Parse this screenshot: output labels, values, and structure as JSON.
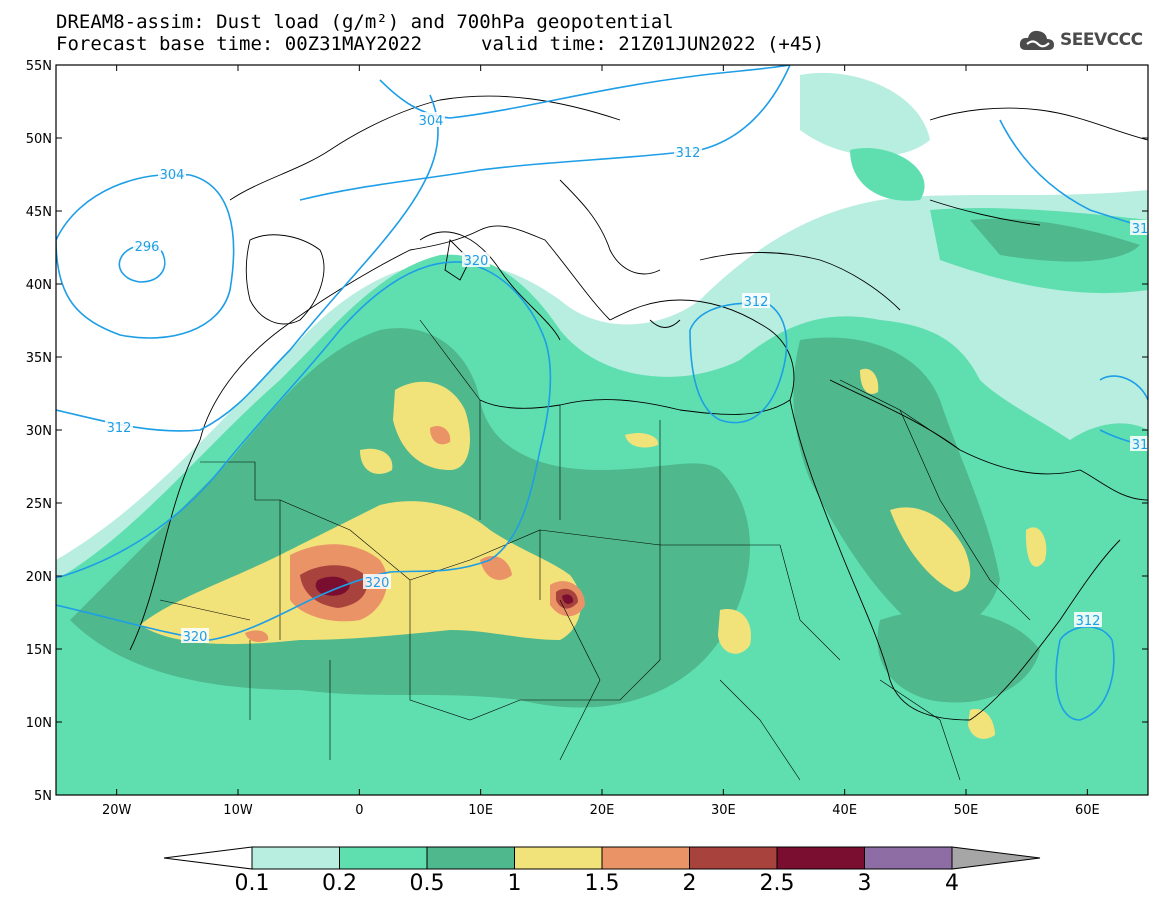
{
  "title": {
    "line1": "DREAM8-assim: Dust load (g/m²) and 700hPa geopotential",
    "line2_left": "Forecast base time: 00Z31MAY2022",
    "line2_right": "valid time: 21Z01JUN2022 (+45)"
  },
  "logo": {
    "text": "SEEVCCC",
    "icon": "cloud-icon"
  },
  "map": {
    "extent": {
      "lon": [
        -25,
        65
      ],
      "lat": [
        5,
        55
      ]
    },
    "lat_ticks": [
      "5N",
      "10N",
      "15N",
      "20N",
      "25N",
      "30N",
      "35N",
      "40N",
      "45N",
      "50N",
      "55N"
    ],
    "lat_values": [
      5,
      10,
      15,
      20,
      25,
      30,
      35,
      40,
      45,
      50,
      55
    ],
    "lon_ticks": [
      "20W",
      "10W",
      "0",
      "10E",
      "20E",
      "30E",
      "40E",
      "50E",
      "60E"
    ],
    "lon_values": [
      -20,
      -10,
      0,
      10,
      20,
      30,
      40,
      50,
      60
    ],
    "contour_labels": [
      "304",
      "296",
      "312",
      "320",
      "320",
      "320",
      "312",
      "312",
      "312",
      "304",
      "31",
      "31"
    ]
  },
  "colorbar": {
    "levels": [
      "0.1",
      "0.2",
      "0.5",
      "1",
      "1.5",
      "2",
      "2.5",
      "3",
      "4"
    ],
    "colors": [
      "#b7eee0",
      "#5fdfb0",
      "#4fb88d",
      "#f2e27a",
      "#ea9366",
      "#a8423d",
      "#7a0e30",
      "#8d6da4"
    ],
    "under_color": "#ffffff",
    "over_color": "#a6a6a6",
    "colors_meaning": "dust load classes"
  },
  "contour_color": "#1e9ee6"
}
